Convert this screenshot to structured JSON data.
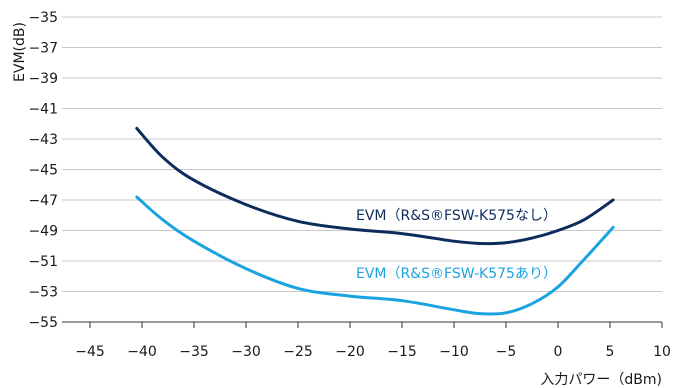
{
  "chart_data": {
    "type": "line",
    "title": "",
    "xlabel": "入力パワー（dBm)",
    "ylabel": "EVM(dB)",
    "xlim": [
      -45,
      10
    ],
    "ylim": [
      -55,
      -35
    ],
    "x_ticks": [
      -45,
      -40,
      -35,
      -30,
      -25,
      -20,
      -15,
      -10,
      -5,
      0,
      5,
      10
    ],
    "x_tick_labels": [
      "−45",
      "−40",
      "−35",
      "−30",
      "−25",
      "−20",
      "−15",
      "−10",
      "−5",
      "0",
      "5",
      "10"
    ],
    "y_ticks": [
      -35,
      -37,
      -39,
      -41,
      -43,
      -45,
      -47,
      -49,
      -51,
      -53,
      -55
    ],
    "y_tick_labels": [
      "−35",
      "−37",
      "−39",
      "−41",
      "−43",
      "−45",
      "−47",
      "−49",
      "−51",
      "−53",
      "−55"
    ],
    "grid": "horizontal",
    "series": [
      {
        "name": "EVM（R&S®FSW-K575なし）",
        "color": "#0d2c5e",
        "x": [
          -40.5,
          -38,
          -35,
          -30,
          -25,
          -20,
          -15,
          -10,
          -7.5,
          -5,
          -2.5,
          0,
          2.5,
          5.3
        ],
        "y": [
          -42.3,
          -44.2,
          -45.7,
          -47.3,
          -48.4,
          -48.9,
          -49.2,
          -49.7,
          -49.85,
          -49.8,
          -49.5,
          -49.0,
          -48.3,
          -47.0
        ]
      },
      {
        "name": "EVM（R&S®FSW-K575あり）",
        "color": "#1aa3e0",
        "x": [
          -40.5,
          -38,
          -35,
          -30,
          -25,
          -20,
          -15,
          -10,
          -7.5,
          -5,
          -2.5,
          0,
          2.5,
          5.3
        ],
        "y": [
          -46.8,
          -48.3,
          -49.7,
          -51.5,
          -52.8,
          -53.3,
          -53.6,
          -54.2,
          -54.45,
          -54.4,
          -53.8,
          -52.7,
          -50.9,
          -48.8
        ]
      }
    ]
  }
}
